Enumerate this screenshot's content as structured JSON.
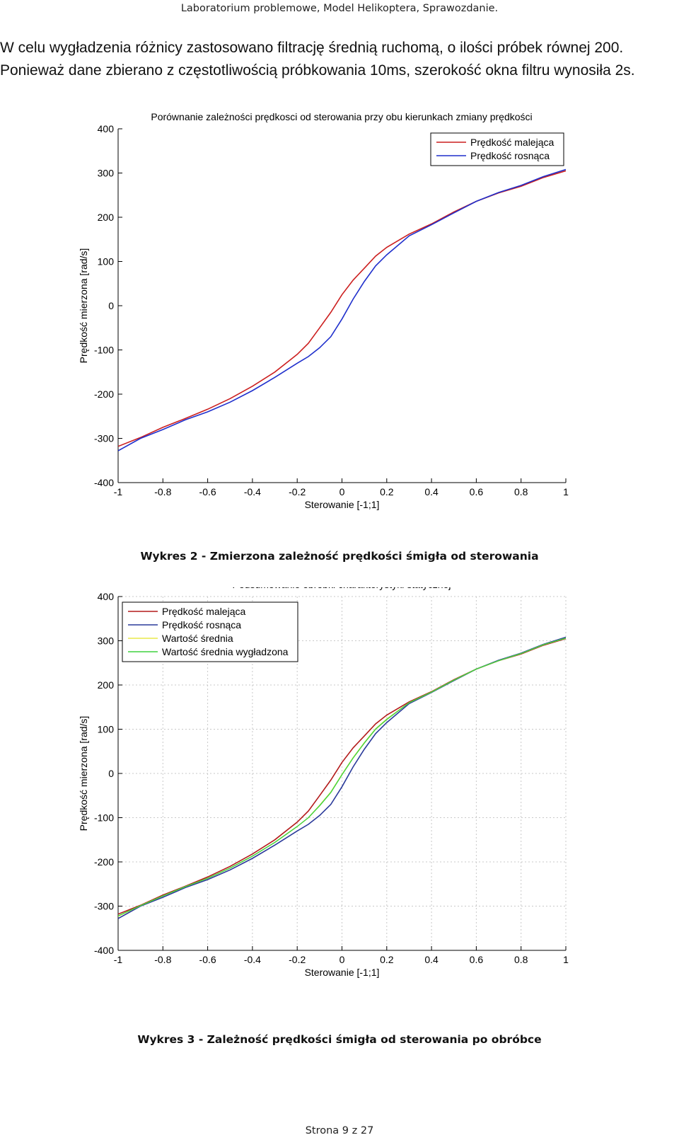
{
  "page": {
    "header": "Laboratorium problemowe, Model Helikoptera, Sprawozdanie.",
    "paragraph_line1": "W celu wygładzenia różnicy zastosowano filtrację średnią ruchomą, o ilości próbek równej 200.",
    "paragraph_line2": "Ponieważ dane zbierano z częstotliwością próbkowania 10ms, szerokość okna filtru wynosiła 2s.",
    "caption1": "Wykres 2 - Zmierzona zależność prędkości śmigła od sterowania",
    "caption2": "Wykres 3 - Zależność prędkości śmigła od sterowania po obróbce",
    "footer": "Strona 9 z 27"
  },
  "chart_data": [
    {
      "type": "line",
      "title": "Porównanie zależności prędkosci od sterowania przy obu kierunkach zmiany prędkości",
      "xlabel": "Sterowanie [-1;1]",
      "ylabel": "Prędkość mierzona [rad/s]",
      "xlim": [
        -1,
        1
      ],
      "ylim": [
        -400,
        400
      ],
      "xticks": [
        -1,
        -0.8,
        -0.6,
        -0.4,
        -0.2,
        0,
        0.2,
        0.4,
        0.6,
        0.8,
        1
      ],
      "yticks": [
        -400,
        -300,
        -200,
        -100,
        0,
        100,
        200,
        300,
        400
      ],
      "xtick_labels": [
        "-1",
        "-0.8",
        "-0.6",
        "-0.4",
        "-0.2",
        "0",
        "0.2",
        "0.4",
        "0.6",
        "0.8",
        "1"
      ],
      "ytick_labels": [
        "-400",
        "-300",
        "-200",
        "-100",
        "0",
        "100",
        "200",
        "300",
        "400"
      ],
      "grid": false,
      "legend_position": "top-right",
      "x": [
        -1,
        -0.9,
        -0.8,
        -0.7,
        -0.6,
        -0.5,
        -0.4,
        -0.3,
        -0.2,
        -0.15,
        -0.1,
        -0.05,
        0,
        0.05,
        0.1,
        0.15,
        0.2,
        0.3,
        0.4,
        0.5,
        0.6,
        0.7,
        0.8,
        0.9,
        1
      ],
      "series": [
        {
          "name": "Prędkość malejąca",
          "color": "#cc1f1f",
          "values": [
            -318,
            -298,
            -275,
            -255,
            -234,
            -210,
            -182,
            -150,
            -110,
            -85,
            -50,
            -15,
            25,
            58,
            85,
            112,
            132,
            162,
            185,
            212,
            236,
            255,
            270,
            290,
            305
          ]
        },
        {
          "name": "Prędkość rosnąca",
          "color": "#1f2fcc",
          "values": [
            -328,
            -300,
            -280,
            -258,
            -240,
            -218,
            -192,
            -162,
            -130,
            -115,
            -95,
            -70,
            -30,
            15,
            55,
            90,
            115,
            158,
            183,
            210,
            236,
            256,
            272,
            292,
            308
          ]
        }
      ]
    },
    {
      "type": "line",
      "title": "Podsumowanie obróbki charakterystyki statycznej",
      "xlabel": "Sterowanie [-1;1]",
      "ylabel": "Prędkość mierzona [rad/s]",
      "xlim": [
        -1,
        1
      ],
      "ylim": [
        -400,
        400
      ],
      "xticks": [
        -1,
        -0.8,
        -0.6,
        -0.4,
        -0.2,
        0,
        0.2,
        0.4,
        0.6,
        0.8,
        1
      ],
      "yticks": [
        -400,
        -300,
        -200,
        -100,
        0,
        100,
        200,
        300,
        400
      ],
      "xtick_labels": [
        "-1",
        "-0.8",
        "-0.6",
        "-0.4",
        "-0.2",
        "0",
        "0.2",
        "0.4",
        "0.6",
        "0.8",
        "1"
      ],
      "ytick_labels": [
        "-400",
        "-300",
        "-200",
        "-100",
        "0",
        "100",
        "200",
        "300",
        "400"
      ],
      "grid": true,
      "legend_position": "top-left",
      "x": [
        -1,
        -0.9,
        -0.8,
        -0.7,
        -0.6,
        -0.5,
        -0.4,
        -0.3,
        -0.2,
        -0.15,
        -0.1,
        -0.05,
        0,
        0.05,
        0.1,
        0.15,
        0.2,
        0.3,
        0.4,
        0.5,
        0.6,
        0.7,
        0.8,
        0.9,
        1
      ],
      "series": [
        {
          "name": "Prędkość malejąca",
          "color": "#b31a1a",
          "values": [
            -318,
            -298,
            -275,
            -255,
            -234,
            -210,
            -182,
            -150,
            -110,
            -85,
            -50,
            -15,
            25,
            58,
            85,
            112,
            132,
            162,
            185,
            212,
            236,
            255,
            270,
            290,
            305
          ]
        },
        {
          "name": "Prędkość rosnąca",
          "color": "#2a3a9a",
          "values": [
            -328,
            -300,
            -280,
            -258,
            -240,
            -218,
            -192,
            -162,
            -130,
            -115,
            -95,
            -70,
            -30,
            15,
            55,
            90,
            115,
            158,
            183,
            210,
            236,
            256,
            272,
            292,
            308
          ]
        },
        {
          "name": "Wartość średnia",
          "color": "#e8e84a",
          "values": [
            -323,
            -299,
            -277,
            -256,
            -237,
            -214,
            -187,
            -156,
            -120,
            -100,
            -72,
            -42,
            -2,
            36,
            70,
            101,
            123,
            160,
            184,
            211,
            236,
            255,
            271,
            291,
            306
          ]
        },
        {
          "name": "Wartość średnia wygładzona",
          "color": "#3fd23f",
          "values": [
            -322,
            -299,
            -277,
            -256,
            -237,
            -214,
            -187,
            -156,
            -120,
            -100,
            -73,
            -43,
            -3,
            35,
            69,
            100,
            122,
            160,
            184,
            211,
            236,
            255,
            271,
            291,
            306
          ]
        }
      ]
    }
  ]
}
